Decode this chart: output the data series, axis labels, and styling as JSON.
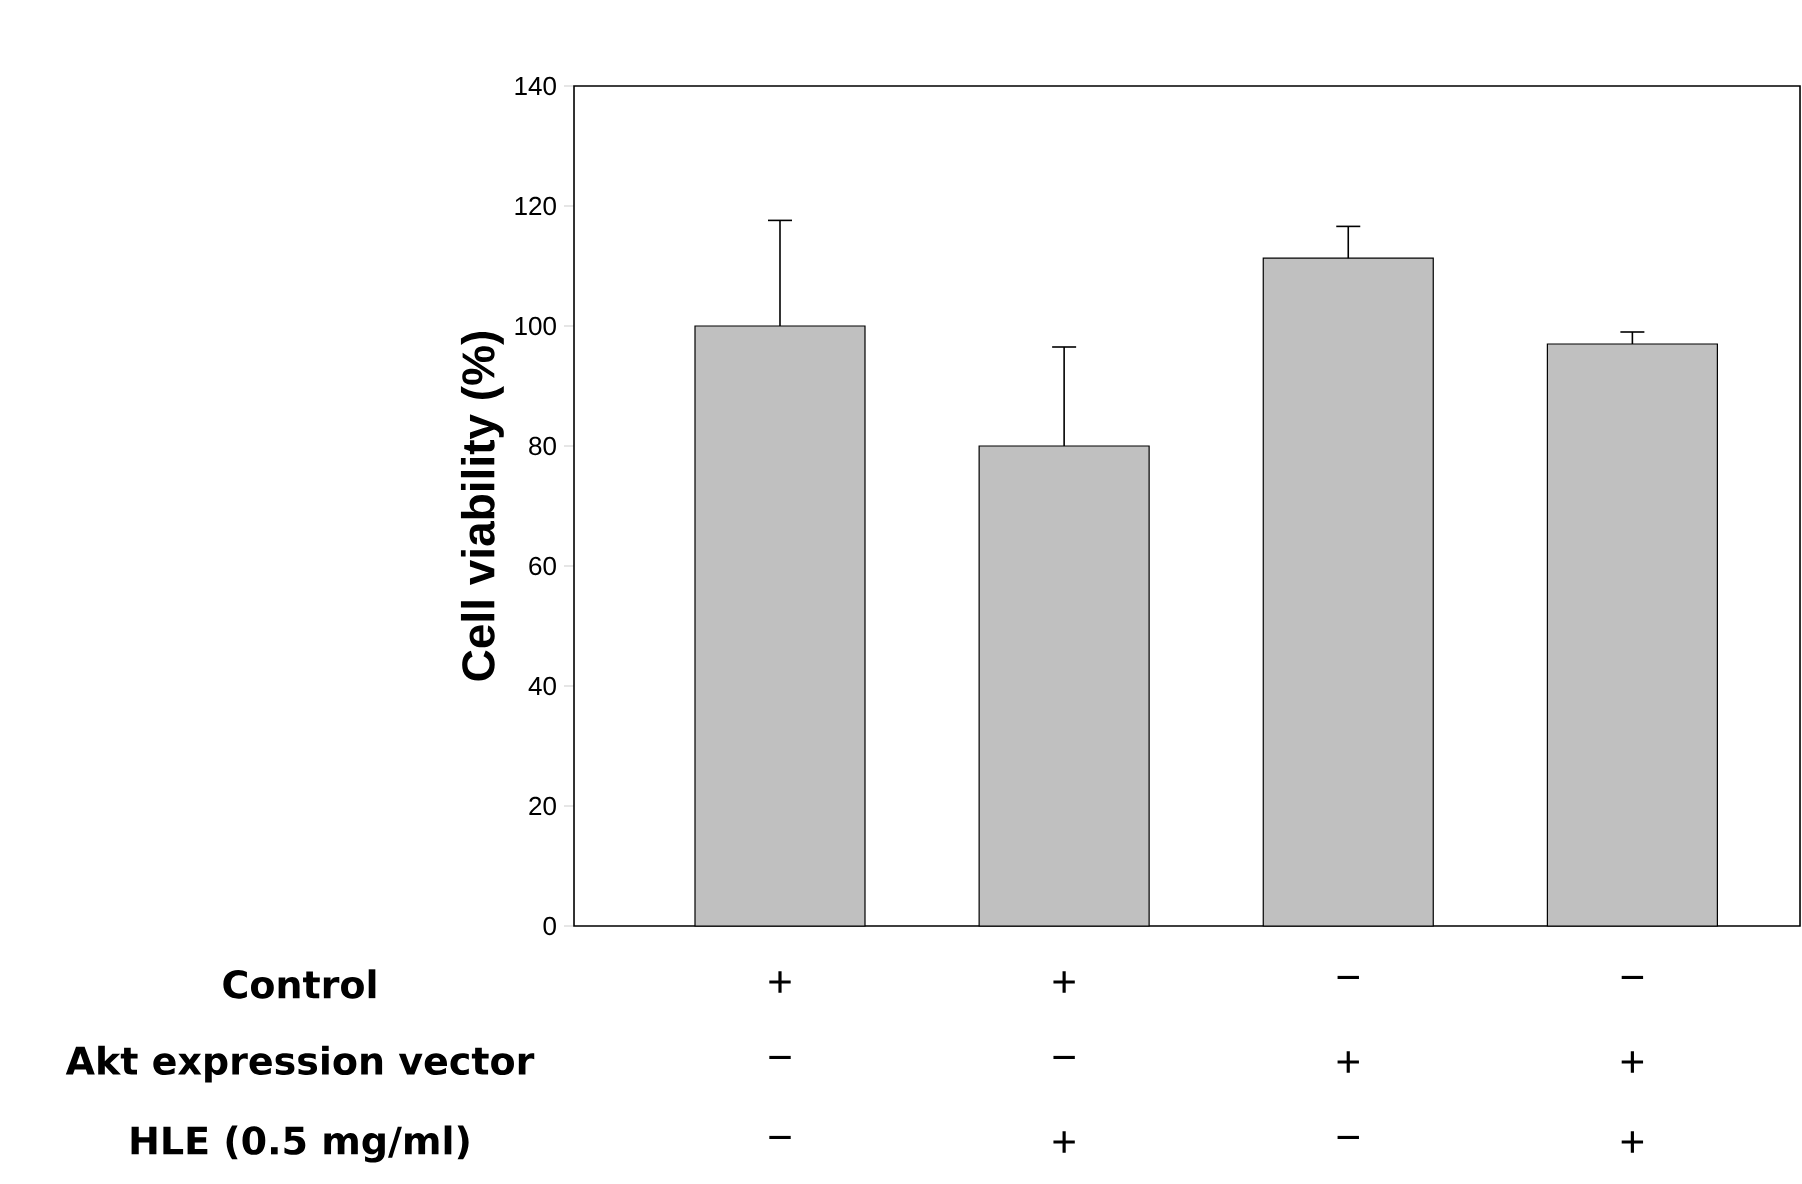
{
  "chart_data": {
    "type": "bar",
    "ylabel": "Cell viability (%)",
    "categories": [
      null,
      null,
      null,
      null
    ],
    "values": [
      100,
      80,
      111.3,
      97
    ],
    "errors": [
      [
        100,
        117.6
      ],
      [
        80,
        96.5
      ],
      [
        111.3,
        116.6
      ],
      [
        97,
        99
      ]
    ],
    "color": "#c0c0c0",
    "ylim": [
      0,
      140
    ],
    "yticks": [
      0,
      20,
      40,
      60,
      80,
      100,
      120,
      140
    ],
    "annotations": [
      "Control",
      "Akt expression vector",
      "HLE (0.5 mg/ml)",
      "+",
      "+",
      "−",
      "−",
      "−",
      "−",
      "+",
      "+",
      "−",
      "+",
      "−",
      "+"
    ]
  }
}
